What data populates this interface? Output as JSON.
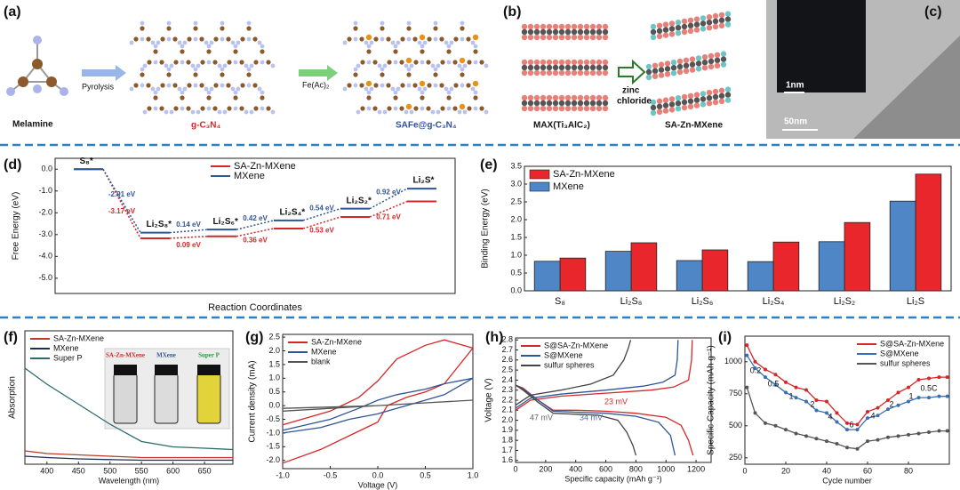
{
  "panels": {
    "a": {
      "label": "(a)",
      "melamine": "Melamine",
      "step1": "Pyrolysis",
      "product1": "g-C₃N₄",
      "step2": "Fe(Ac)₂",
      "product2": "SAFe@g-C₃N₄"
    },
    "b": {
      "label": "(b)",
      "precursor": "MAX(Ti₃AlC₂)",
      "step": [
        "zinc",
        "chloride"
      ],
      "product": "SA-Zn-MXene"
    },
    "c": {
      "label": "(c)",
      "inset_scale": "1nm",
      "scale": "50nm"
    }
  },
  "chart_data": [
    {
      "type": "energy",
      "label": "(d)",
      "ylabel": "Free Energy (eV)",
      "xlabel": "Reaction Coordinates",
      "categories": [
        "S₈*",
        "Li₂S₈*",
        "Li₂S₆*",
        "Li₂S₄*",
        "Li₂S₂*",
        "Li₂S*"
      ],
      "series": [
        {
          "name": "SA-Zn-MXene",
          "color": "#d62728",
          "values": [
            0,
            -3.17,
            -3.08,
            -2.72,
            -2.19,
            -1.48
          ],
          "step_labels": [
            "-3.17 eV",
            "0.09 eV",
            "0.36 eV",
            "0.53 eV",
            "0.71 eV"
          ]
        },
        {
          "name": "MXene",
          "color": "#2e5597",
          "values": [
            0,
            -2.91,
            -2.77,
            -2.35,
            -1.81,
            -0.89
          ],
          "step_labels": [
            "-2.91 eV",
            "0.14 eV",
            "0.42 eV",
            "0.54 eV",
            "0.92 eV"
          ]
        }
      ],
      "ylim": [
        -5.7,
        0.5
      ],
      "yticks": [
        {
          "value": 0,
          "label": "0.0"
        },
        {
          "value": -1,
          "label": "-1.0"
        },
        {
          "value": -2,
          "label": "-2.0"
        },
        {
          "value": -3,
          "label": "-3.0"
        },
        {
          "value": -4,
          "label": "-4.0"
        },
        {
          "value": -5,
          "label": "-5.0"
        }
      ],
      "legend": "upper center"
    },
    {
      "type": "bar",
      "label": "(e)",
      "ylabel": "Binding Energy (eV)",
      "categories": [
        "S₈",
        "Li₂S₈",
        "Li₂S₆",
        "Li₂S₄",
        "Li₂S₂",
        "Li₂S"
      ],
      "series": [
        {
          "name": "SA-Zn-MXene",
          "color": "#e8262b",
          "values": [
            0.92,
            1.35,
            1.15,
            1.37,
            1.92,
            3.28
          ]
        },
        {
          "name": "MXene",
          "color": "#4f86c6",
          "values": [
            0.83,
            1.11,
            0.85,
            0.82,
            1.38,
            2.52
          ]
        }
      ],
      "ylim": [
        0,
        3.5
      ],
      "yticks": [
        {
          "value": 0,
          "label": "0.0"
        },
        0.5,
        {
          "value": 1,
          "label": "1.0"
        },
        1.5,
        {
          "value": 2,
          "label": "2.0"
        },
        2.5,
        {
          "value": 3,
          "label": "3.0"
        },
        3.5
      ],
      "legend": "upper left"
    },
    {
      "type": "line",
      "label": "(f)",
      "ylabel": "Absorption",
      "xlabel": "Wavelength (nm)",
      "x": [
        365,
        400,
        450,
        500,
        550,
        600,
        650,
        695
      ],
      "series": [
        {
          "name": "SA-Zn-MXene",
          "color": "#c0392b",
          "values": [
            0.1,
            0.08,
            0.07,
            0.06,
            0.05,
            0.05,
            0.05,
            0.05
          ]
        },
        {
          "name": "MXene",
          "color": "#1f2d5a",
          "values": [
            0.06,
            0.05,
            0.04,
            0.035,
            0.03,
            0.03,
            0.03,
            0.03
          ]
        },
        {
          "name": "Super P",
          "color": "#2b6b6b",
          "values": [
            0.72,
            0.6,
            0.45,
            0.3,
            0.17,
            0.13,
            0.12,
            0.11
          ]
        }
      ],
      "xlim": [
        365,
        695
      ],
      "xticks": [
        400,
        450,
        500,
        550,
        600,
        650
      ],
      "ylim": [
        0,
        1
      ],
      "inset_labels": [
        "SA-Zn-MXene",
        "MXene",
        "Super P"
      ],
      "legend": "upper left"
    },
    {
      "type": "line",
      "label": "(g)",
      "ylabel": "Current density (mA)",
      "xlabel": "Voltage (V)",
      "series": [
        {
          "name": "SA-Zn-MXene",
          "color": "#d62728",
          "x": [
            -1,
            -0.5,
            -0.2,
            0,
            0.2,
            0.5,
            0.7,
            1,
            0.7,
            0.5,
            0.3,
            0.1,
            0,
            -0.3,
            -0.6,
            -1
          ],
          "values": [
            -0.7,
            -0.2,
            0.3,
            0.9,
            1.7,
            2.2,
            2.4,
            2.1,
            0.8,
            0.5,
            0.3,
            0,
            -0.6,
            -1.1,
            -1.6,
            -2.1
          ]
        },
        {
          "name": "MXene",
          "color": "#2e5597",
          "x": [
            -1,
            -0.5,
            -0.2,
            0,
            0.2,
            0.5,
            0.7,
            1,
            0.7,
            0.5,
            0.3,
            0.1,
            0,
            -0.3,
            -0.6,
            -1
          ],
          "values": [
            -0.9,
            -0.5,
            -0.1,
            0.2,
            0.4,
            0.6,
            0.8,
            1,
            0.4,
            0.2,
            0,
            -0.2,
            -0.3,
            -0.5,
            -0.8,
            -1
          ]
        },
        {
          "name": "blank",
          "color": "#555555",
          "x": [
            -1,
            -0.5,
            0,
            0.5,
            1,
            0.5,
            0,
            -0.5,
            -1
          ],
          "values": [
            -0.1,
            -0.05,
            0,
            0.1,
            0.2,
            0.1,
            0,
            -0.1,
            -0.2
          ]
        }
      ],
      "xlim": [
        -1,
        1
      ],
      "xticks": [
        {
          "value": -1,
          "label": "-1.0"
        },
        -0.5,
        {
          "value": 0,
          "label": "0.0"
        },
        0.5,
        {
          "value": 1,
          "label": "1.0"
        }
      ],
      "ylim": [
        -2.3,
        2.6
      ],
      "yticks": [
        2.5,
        {
          "value": 2,
          "label": "2.0"
        },
        1.5,
        {
          "value": 1,
          "label": "1.0"
        },
        0.5,
        {
          "value": 0,
          "label": "0.0"
        },
        -0.5,
        {
          "value": -1,
          "label": "-1.0"
        },
        -1.5,
        {
          "value": -2,
          "label": "-2.0"
        }
      ],
      "legend": "upper left"
    },
    {
      "type": "line",
      "label": "(h)",
      "ylabel": "Voltage (V)",
      "xlabel": "Specific capacity (mAh g⁻¹)",
      "series": [
        {
          "name": "S@SA-Zn-MXene",
          "color": "#d62728",
          "x": [
            0,
            50,
            150,
            250,
            400,
            600,
            800,
            1000,
            1100,
            1150,
            1180,
            null,
            0,
            100,
            300,
            600,
            900,
            1050,
            1150,
            1170,
            1175
          ],
          "values": [
            2.35,
            2.32,
            2.2,
            2.1,
            2.1,
            2.09,
            2.07,
            2.03,
            1.95,
            1.8,
            1.65,
            null,
            2.1,
            2.2,
            2.24,
            2.27,
            2.3,
            2.33,
            2.4,
            2.6,
            2.8
          ]
        },
        {
          "name": "S@MXene",
          "color": "#2e5597",
          "x": [
            0,
            50,
            150,
            250,
            400,
            600,
            800,
            950,
            1030,
            1060,
            null,
            0,
            100,
            300,
            600,
            850,
            980,
            1060,
            1075,
            1080
          ],
          "values": [
            2.35,
            2.31,
            2.2,
            2.09,
            2.08,
            2.07,
            2.04,
            1.98,
            1.85,
            1.65,
            null,
            2.12,
            2.22,
            2.26,
            2.3,
            2.34,
            2.38,
            2.45,
            2.6,
            2.8
          ]
        },
        {
          "name": "sulfur spheres",
          "color": "#444444",
          "x": [
            0,
            50,
            150,
            250,
            400,
            550,
            680,
            740,
            780,
            800,
            null,
            0,
            100,
            300,
            500,
            650,
            720,
            750,
            765
          ],
          "values": [
            2.35,
            2.3,
            2.18,
            2.07,
            2.06,
            2.05,
            2.0,
            1.88,
            1.75,
            1.65,
            null,
            2.15,
            2.25,
            2.3,
            2.36,
            2.45,
            2.6,
            2.72,
            2.8
          ]
        }
      ],
      "xlim": [
        0,
        1300
      ],
      "xticks": [
        0,
        200,
        400,
        600,
        800,
        1000,
        1200
      ],
      "ylim": [
        1.58,
        2.82
      ],
      "yticks": [
        1.6,
        1.7,
        1.8,
        1.9,
        {
          "value": 2,
          "label": "2.0"
        },
        2.1,
        2.2,
        2.3,
        2.4,
        2.5,
        2.6,
        2.7,
        2.8
      ],
      "annotations": [
        "23 mV",
        "47 mV",
        "34 mV"
      ],
      "legend": "upper left"
    },
    {
      "type": "line",
      "label": "(i)",
      "ylabel": "Specific Capacity (mAh g⁻¹)",
      "xlabel": "Cycle number",
      "markers": true,
      "x": [
        1,
        5,
        10,
        15,
        20,
        25,
        30,
        35,
        40,
        45,
        50,
        55,
        60,
        65,
        70,
        75,
        80,
        85,
        90,
        95,
        99
      ],
      "series": [
        {
          "name": "S@SA-Zn-MXene",
          "color": "#d62728",
          "values": [
            1130,
            1000,
            940,
            900,
            840,
            800,
            780,
            700,
            690,
            600,
            520,
            510,
            610,
            640,
            700,
            760,
            800,
            860,
            870,
            880,
            880
          ]
        },
        {
          "name": "S@MXene",
          "color": "#3a6fb5",
          "values": [
            1050,
            950,
            880,
            820,
            760,
            720,
            690,
            620,
            600,
            530,
            470,
            470,
            560,
            580,
            630,
            660,
            690,
            720,
            720,
            730,
            730
          ]
        },
        {
          "name": "sulfur spheres",
          "color": "#555555",
          "values": [
            800,
            600,
            520,
            500,
            470,
            440,
            420,
            400,
            380,
            360,
            330,
            320,
            380,
            390,
            410,
            420,
            430,
            440,
            450,
            460,
            460
          ]
        }
      ],
      "xlim": [
        0,
        100
      ],
      "xticks": [
        0,
        20,
        40,
        60,
        80
      ],
      "ylim": [
        200,
        1200
      ],
      "yticks": [
        250,
        500,
        750,
        1000
      ],
      "rate_labels": [
        "0.2",
        "0.5",
        "1",
        "2",
        "4",
        "6",
        "4",
        "2",
        "1",
        "0.5C"
      ],
      "legend": "upper right"
    }
  ]
}
